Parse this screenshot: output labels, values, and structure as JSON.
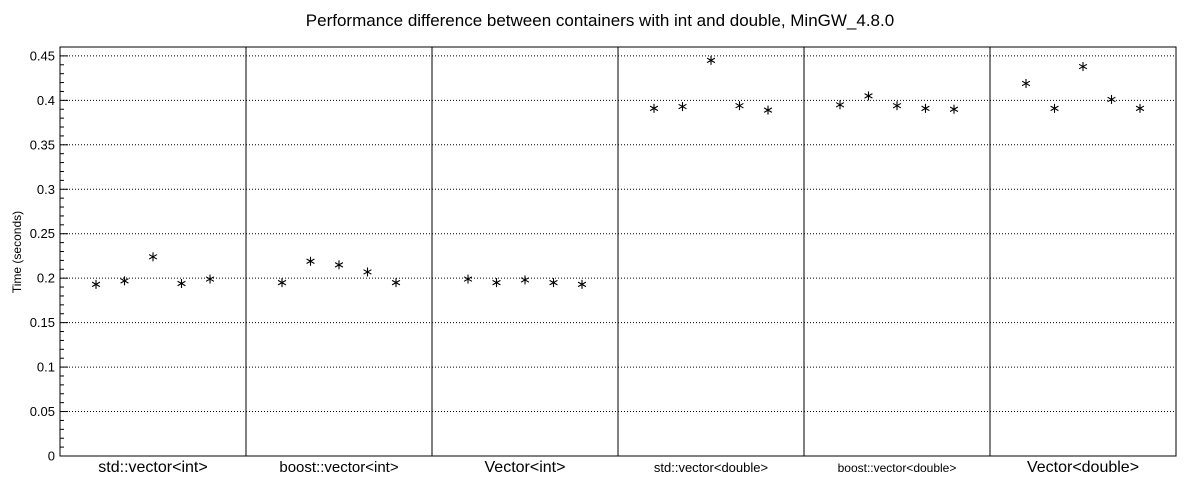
{
  "chart_data": {
    "type": "scatter",
    "title": "Performance difference between containers with int and double, MinGW_4.8.0",
    "ylabel": "Time (seconds)",
    "ylim": [
      0,
      0.46
    ],
    "yticks": [
      "0",
      "0.05",
      "0.1",
      "0.15",
      "0.2",
      "0.25",
      "0.3",
      "0.35",
      "0.4",
      "0.45"
    ],
    "grid": true,
    "categories": [
      "std::vector<int>",
      "boost::vector<int>",
      "Vector<int>",
      "std::vector<double>",
      "boost::vector<double>",
      "Vector<double>"
    ],
    "series": [
      {
        "values": [
          0.193,
          0.197,
          0.224,
          0.194,
          0.199
        ]
      },
      {
        "values": [
          0.195,
          0.219,
          0.215,
          0.207,
          0.195
        ]
      },
      {
        "values": [
          0.199,
          0.195,
          0.198,
          0.195,
          0.193
        ]
      },
      {
        "values": [
          0.391,
          0.393,
          0.445,
          0.394,
          0.389
        ]
      },
      {
        "values": [
          0.395,
          0.405,
          0.394,
          0.391,
          0.39
        ]
      },
      {
        "values": [
          0.419,
          0.391,
          0.438,
          0.401,
          0.391
        ]
      }
    ],
    "marker": "asterisk"
  }
}
